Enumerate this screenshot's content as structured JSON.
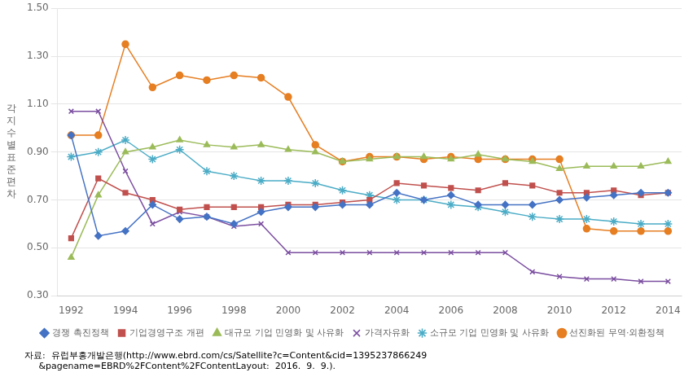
{
  "chart_data": {
    "type": "line",
    "ylabel": "각지수별표준편차",
    "annotations": [
      "자료:  유럽부흥개발은행(http://www.ebrd.com/cs/Satellite?c=Content&cid=1395237866249",
      "     &pagename=EBRD%2FContent%2FContentLayout:  2016.  9.  9.)."
    ],
    "x": [
      1992,
      1993,
      1994,
      1995,
      1996,
      1997,
      1998,
      1999,
      2000,
      2001,
      2002,
      2003,
      2004,
      2005,
      2006,
      2007,
      2008,
      2009,
      2010,
      2011,
      2012,
      2013,
      2014
    ],
    "series": [
      {
        "name": "경쟁 촉진정책",
        "color": "#4472C4",
        "marker": "diamond",
        "values": [
          0.97,
          0.55,
          0.57,
          0.68,
          0.62,
          0.63,
          0.6,
          0.65,
          0.67,
          0.67,
          0.68,
          0.68,
          0.73,
          0.7,
          0.72,
          0.68,
          0.68,
          0.68,
          0.7,
          0.71,
          0.72,
          0.73,
          0.73
        ]
      },
      {
        "name": "기업경영구조 개편",
        "color": "#C0504D",
        "marker": "square",
        "values": [
          0.54,
          0.79,
          0.73,
          0.7,
          0.66,
          0.67,
          0.67,
          0.67,
          0.68,
          0.68,
          0.69,
          0.7,
          0.77,
          0.76,
          0.75,
          0.74,
          0.77,
          0.76,
          0.73,
          0.73,
          0.74,
          0.72,
          0.73
        ]
      },
      {
        "name": "대규모 기업 민영화 및 사유화",
        "color": "#9BBB59",
        "marker": "triangle",
        "values": [
          0.46,
          0.72,
          0.9,
          0.92,
          0.95,
          0.93,
          0.92,
          0.93,
          0.91,
          0.9,
          0.86,
          0.87,
          0.88,
          0.88,
          0.87,
          0.89,
          0.87,
          0.86,
          0.83,
          0.84,
          0.84,
          0.84,
          0.86
        ]
      },
      {
        "name": "가격자유화",
        "color": "#7B4EA0",
        "marker": "x",
        "values": [
          1.07,
          1.07,
          0.82,
          0.6,
          0.65,
          0.63,
          0.59,
          0.6,
          0.48,
          0.48,
          0.48,
          0.48,
          0.48,
          0.48,
          0.48,
          0.48,
          0.48,
          0.4,
          0.38,
          0.37,
          0.37,
          0.36,
          0.36
        ]
      },
      {
        "name": "소규모 기업 민영화 및 사유화",
        "color": "#4BACC6",
        "marker": "star",
        "values": [
          0.88,
          0.9,
          0.95,
          0.87,
          0.91,
          0.82,
          0.8,
          0.78,
          0.78,
          0.77,
          0.74,
          0.72,
          0.7,
          0.7,
          0.68,
          0.67,
          0.65,
          0.63,
          0.62,
          0.62,
          0.61,
          0.6,
          0.6
        ]
      },
      {
        "name": "선진화된 무역·외환정책",
        "color": "#E67E22",
        "marker": "circle",
        "values": [
          0.97,
          0.97,
          1.35,
          1.17,
          1.22,
          1.2,
          1.22,
          1.21,
          1.13,
          0.93,
          0.86,
          0.88,
          0.88,
          0.87,
          0.88,
          0.87,
          0.87,
          0.87,
          0.87,
          0.58,
          0.57,
          0.57,
          0.57
        ]
      }
    ],
    "xlim": [
      1991.5,
      2014.5
    ],
    "xticks": [
      1992,
      1994,
      1996,
      1998,
      2000,
      2002,
      2004,
      2006,
      2008,
      2010,
      2012,
      2014
    ],
    "ylim": [
      0.3,
      1.5
    ],
    "yticks": [
      {
        "value": 0.3,
        "label": "0.30"
      },
      {
        "value": 0.5,
        "label": "0.50"
      },
      {
        "value": 0.7,
        "label": "0.70"
      },
      {
        "value": 0.9,
        "label": "0.90"
      },
      {
        "value": 1.1,
        "label": "1.10"
      },
      {
        "value": 1.3,
        "label": "1.30"
      },
      {
        "value": 1.5,
        "label": "1.50"
      }
    ],
    "grid": true,
    "legend": "bottom"
  }
}
